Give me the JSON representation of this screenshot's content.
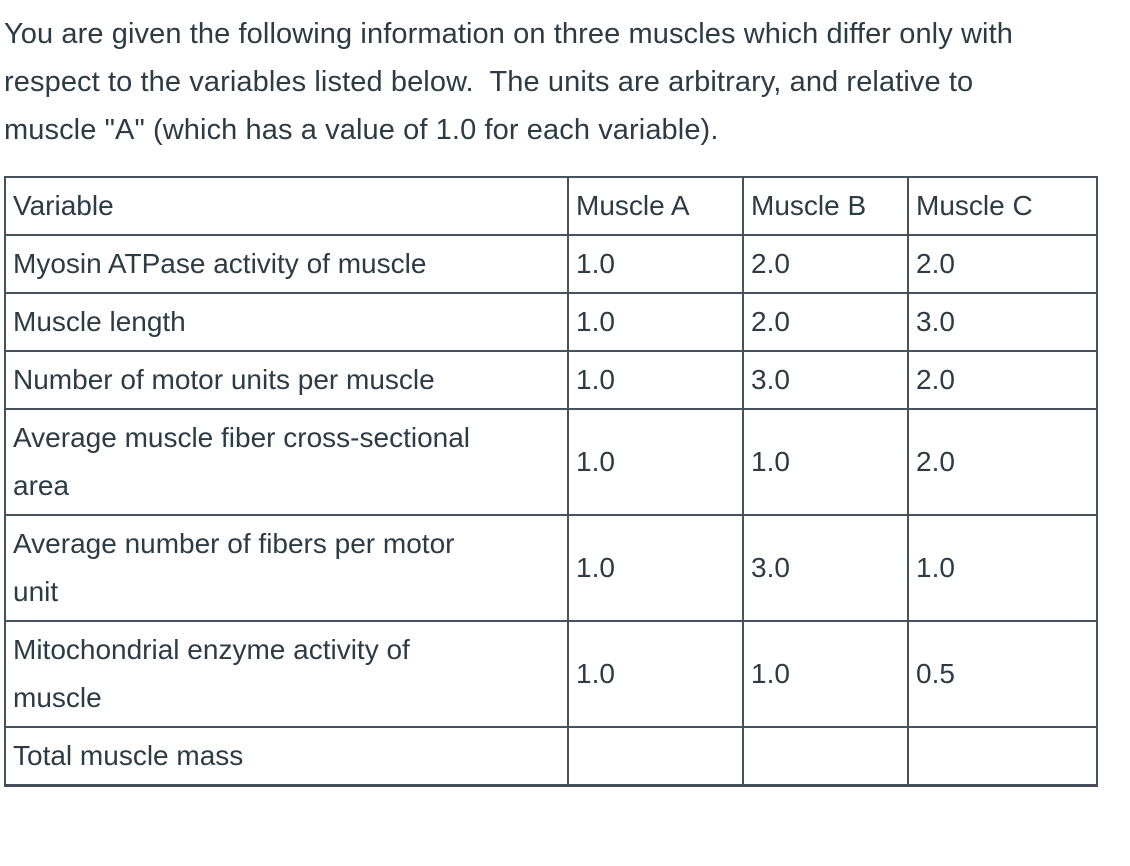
{
  "colors": {
    "background": "#ffffff",
    "text": "#2d3b45",
    "table_border": "#49525a"
  },
  "intro": {
    "full_text": "You are given the following information on three muscles which differ only with respect to the variables listed below.  The units are arbitrary, and relative to muscle \"A\" (which has a value of 1.0 for each variable).",
    "lines": [
      "You are given the following information on three muscles which differ only with",
      "respect to the variables listed below.  The units are arbitrary, and relative to",
      "muscle \"A\" (which has a value of 1.0 for each variable)."
    ]
  },
  "table": {
    "headers": [
      "Variable",
      "Muscle A",
      "Muscle B",
      "Muscle C"
    ],
    "rows": [
      {
        "variable_lines": [
          "Myosin ATPase activity of muscle"
        ],
        "values": [
          "1.0",
          "2.0",
          "2.0"
        ]
      },
      {
        "variable_lines": [
          "Muscle length"
        ],
        "values": [
          "1.0",
          "2.0",
          "3.0"
        ]
      },
      {
        "variable_lines": [
          "Number of motor units per muscle"
        ],
        "values": [
          "1.0",
          "3.0",
          "2.0"
        ]
      },
      {
        "variable_lines": [
          "Average muscle fiber cross-sectional",
          "area"
        ],
        "values": [
          "1.0",
          "1.0",
          "2.0"
        ]
      },
      {
        "variable_lines": [
          "Average number of fibers per motor",
          "unit"
        ],
        "values": [
          "1.0",
          "3.0",
          "1.0"
        ]
      },
      {
        "variable_lines": [
          "Mitochondrial enzyme activity of",
          "muscle"
        ],
        "values": [
          "1.0",
          "1.0",
          "0.5"
        ]
      },
      {
        "variable_lines": [
          "Total muscle mass"
        ],
        "values": [
          "",
          "",
          ""
        ]
      }
    ]
  }
}
